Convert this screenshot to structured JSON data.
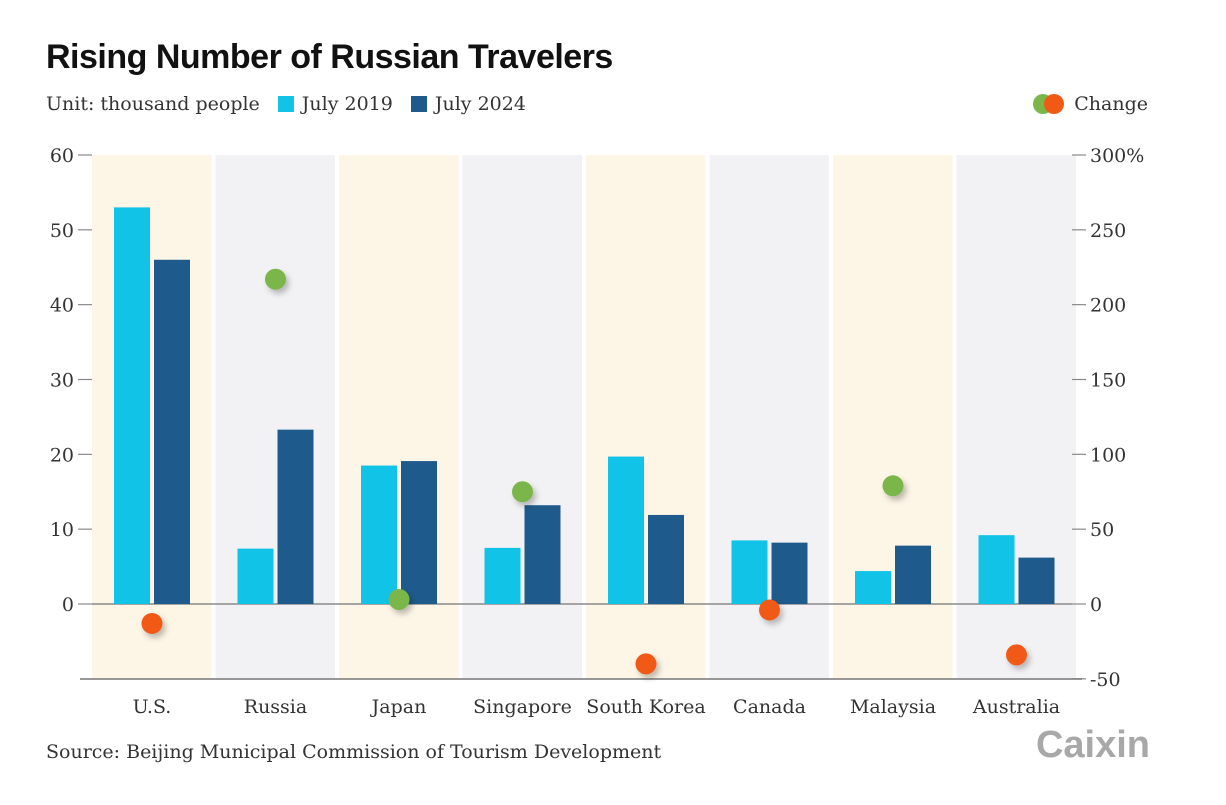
{
  "title": "Rising Number of Russian Travelers",
  "legend": {
    "unit": "Unit: thousand people",
    "series1": "July 2019",
    "series2": "July 2024",
    "change": "Change"
  },
  "source": "Source: Beijing Municipal Commission of Tourism Development",
  "logo": "Caixin",
  "colors": {
    "july2019": "#12c3e8",
    "july2024": "#1f5a8c",
    "increase": "#7ab648",
    "decrease": "#f05a14",
    "band_warm": "#fdf5e6",
    "band_gray": "#f2f2f4"
  },
  "chart_data": {
    "type": "bar",
    "title": "Rising Number of Russian Travelers",
    "categories": [
      "U.S.",
      "Russia",
      "Japan",
      "Singapore",
      "South Korea",
      "Canada",
      "Malaysia",
      "Australia"
    ],
    "series": [
      {
        "name": "July 2019",
        "values": [
          53,
          7.4,
          18.5,
          7.5,
          19.7,
          8.5,
          4.4,
          9.2
        ]
      },
      {
        "name": "July 2024",
        "values": [
          46,
          23.3,
          19.1,
          13.2,
          11.9,
          8.2,
          7.8,
          6.2
        ]
      }
    ],
    "change_percent": [
      -13,
      217,
      3,
      75,
      -40,
      -4,
      79,
      -34
    ],
    "y_left": {
      "lim": [
        -10,
        60
      ],
      "ticks": [
        0,
        10,
        20,
        30,
        40,
        50,
        60
      ],
      "tick_labels": [
        "0",
        "10",
        "20",
        "30",
        "40",
        "50",
        "60"
      ]
    },
    "y_right": {
      "lim": [
        -50,
        300
      ],
      "ticks": [
        -50,
        0,
        50,
        100,
        150,
        200,
        250,
        300
      ],
      "tick_labels": [
        "-50",
        "0",
        "50",
        "100",
        "150",
        "200",
        "250",
        "300%"
      ]
    },
    "grid": false,
    "legend_position": "top"
  }
}
